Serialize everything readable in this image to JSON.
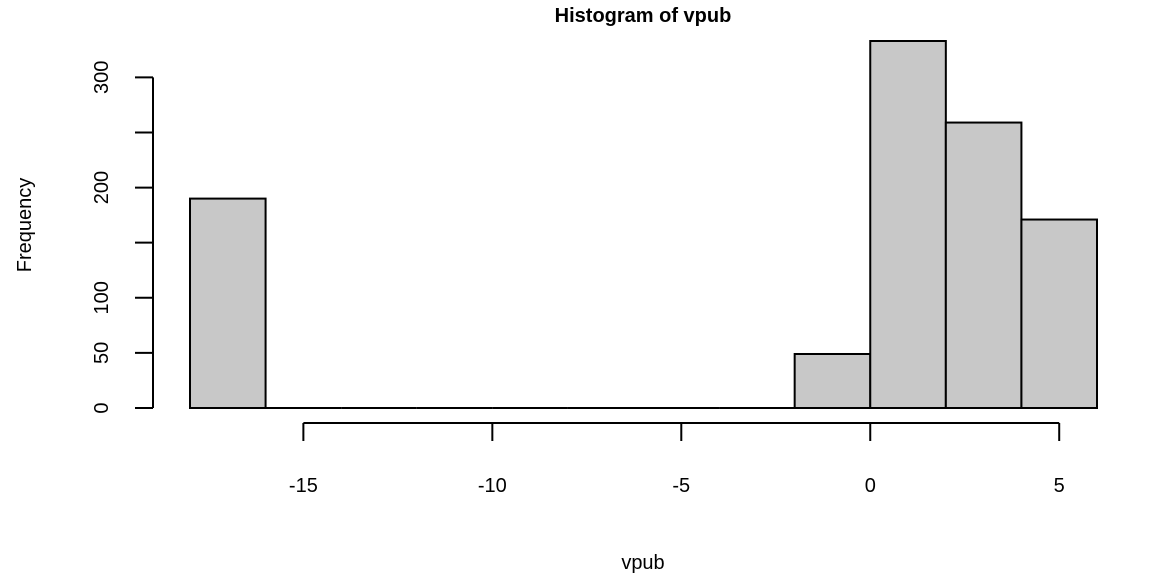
{
  "chart_data": {
    "type": "bar",
    "title": "Histogram of vpub",
    "xlabel": "vpub",
    "ylabel": "Frequency",
    "bin_edges": [
      -18,
      -16,
      -14,
      -12,
      -10,
      -8,
      -6,
      -4,
      -2,
      0,
      2,
      4,
      6
    ],
    "values": [
      190,
      0,
      0,
      0,
      0,
      0,
      0,
      0,
      49,
      333,
      259,
      171
    ],
    "xlim": [
      -18,
      6
    ],
    "ylim": [
      0,
      333
    ],
    "x_ticks": [
      -15,
      -10,
      -5,
      0,
      5
    ],
    "y_ticks": [
      0,
      50,
      100,
      150,
      200,
      250,
      300
    ],
    "y_tick_labels": [
      "0",
      "50",
      "100",
      "",
      "200",
      "",
      "300"
    ],
    "grid": false,
    "bar_fill": "#c8c8c8",
    "bar_stroke": "#000000"
  }
}
